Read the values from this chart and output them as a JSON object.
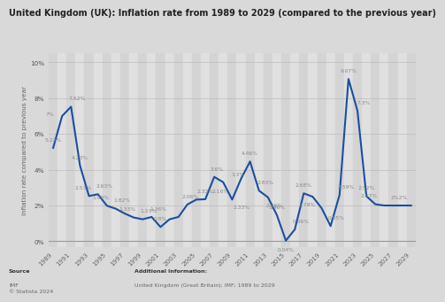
{
  "title": "United Kingdom (UK): Inflation rate from 1989 to 2029 (compared to the previous year)",
  "ylabel": "Inflation rate compared to previous year",
  "years": [
    1989,
    1990,
    1991,
    1992,
    1993,
    1994,
    1995,
    1996,
    1997,
    1998,
    1999,
    2000,
    2001,
    2002,
    2003,
    2004,
    2005,
    2006,
    2007,
    2008,
    2009,
    2010,
    2011,
    2012,
    2013,
    2014,
    2015,
    2016,
    2017,
    2018,
    2019,
    2020,
    2021,
    2022,
    2023,
    2024,
    2025,
    2026,
    2027,
    2028,
    2029
  ],
  "values": [
    5.22,
    7.0,
    7.52,
    4.23,
    2.53,
    2.63,
    1.99,
    1.82,
    1.55,
    1.33,
    1.23,
    1.36,
    0.8,
    1.23,
    1.36,
    2.06,
    2.33,
    2.35,
    3.6,
    3.3,
    2.33,
    3.5,
    4.46,
    2.83,
    2.46,
    1.46,
    0.04,
    0.66,
    2.68,
    2.49,
    1.85,
    0.85,
    2.59,
    9.07,
    7.3,
    2.52,
    2.07,
    2.0,
    2.0,
    2.0,
    2.0
  ],
  "line_color": "#1a4fa0",
  "line_width": 1.5,
  "ylim": [
    -0.3,
    10.5
  ],
  "ytick_labels": [
    "0%",
    "2%",
    "4%",
    "6%",
    "8%",
    "10%"
  ],
  "ytick_values": [
    0,
    2,
    4,
    6,
    8,
    10
  ],
  "bg_color": "#d9d9d9",
  "plot_bg_color": "#e8e8e8",
  "stripe_color": "#d4d4d4",
  "stripe_color2": "#e0e0e0",
  "source_label": "Source",
  "source_text": "IMF\n© Statista 2024",
  "additional_label": "Additional Information:",
  "additional_text": "United Kingdom (Great Britain); IMF; 1989 to 2029",
  "title_fontsize": 7.0,
  "label_fontsize": 5.2,
  "annot_fontsize": 4.3,
  "footer_fontsize": 4.5,
  "annot_color": "#888888"
}
